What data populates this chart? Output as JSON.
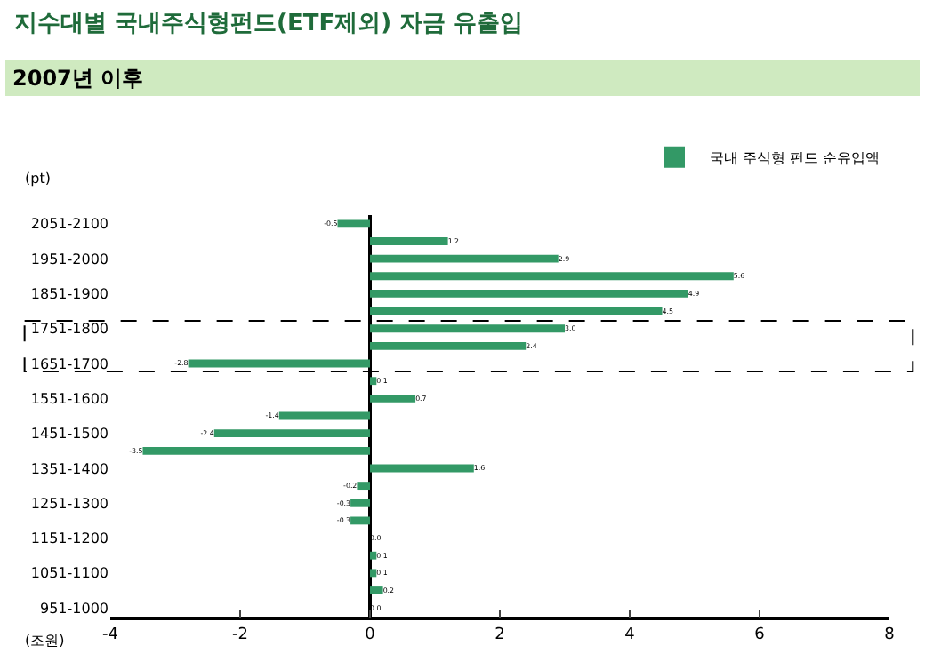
{
  "chart_data": {
    "type": "bar",
    "orientation": "horizontal",
    "title": "지수대별 국내주식형펀드(ETF제외) 자금 유출입",
    "subtitle": "2007년 이후",
    "ylabel": "(pt)",
    "xlabel": "(조원)",
    "categories": [
      "2051-2100",
      null,
      "1951-2000",
      null,
      "1851-1900",
      null,
      "1751-1800",
      null,
      "1651-1700",
      null,
      "1551-1600",
      null,
      "1451-1500",
      null,
      "1351-1400",
      null,
      "1251-1300",
      null,
      "1151-1200",
      null,
      "1051-1100",
      null,
      "951-1000"
    ],
    "series": [
      {
        "name": "국내 주식형 펀드 순유입액",
        "color": "#339966",
        "values": [
          -0.5,
          1.2,
          2.9,
          5.6,
          4.9,
          4.5,
          3.0,
          2.4,
          -2.8,
          0.1,
          0.7,
          -1.4,
          -2.4,
          -3.5,
          1.6,
          -0.2,
          -0.3,
          -0.3,
          0.0,
          0.1,
          0.1,
          0.2,
          0.0
        ],
        "value_labels": [
          "-0.5",
          "1.2",
          "2.9",
          "5.6",
          "4.9",
          "4.5",
          "3.0",
          "2.4",
          "-2.8",
          "0.1",
          "0.7",
          "-1.4",
          "-2.4",
          "-3.5",
          "1.6",
          "-0.2",
          "-0.3",
          "-0.3",
          "0.0",
          "0.1",
          "0.1",
          "0.2",
          "0.0"
        ]
      }
    ],
    "xlim": [
      -4,
      8
    ],
    "xticks": [
      -4,
      -2,
      0,
      2,
      4,
      6,
      8
    ],
    "legend": "top right"
  }
}
